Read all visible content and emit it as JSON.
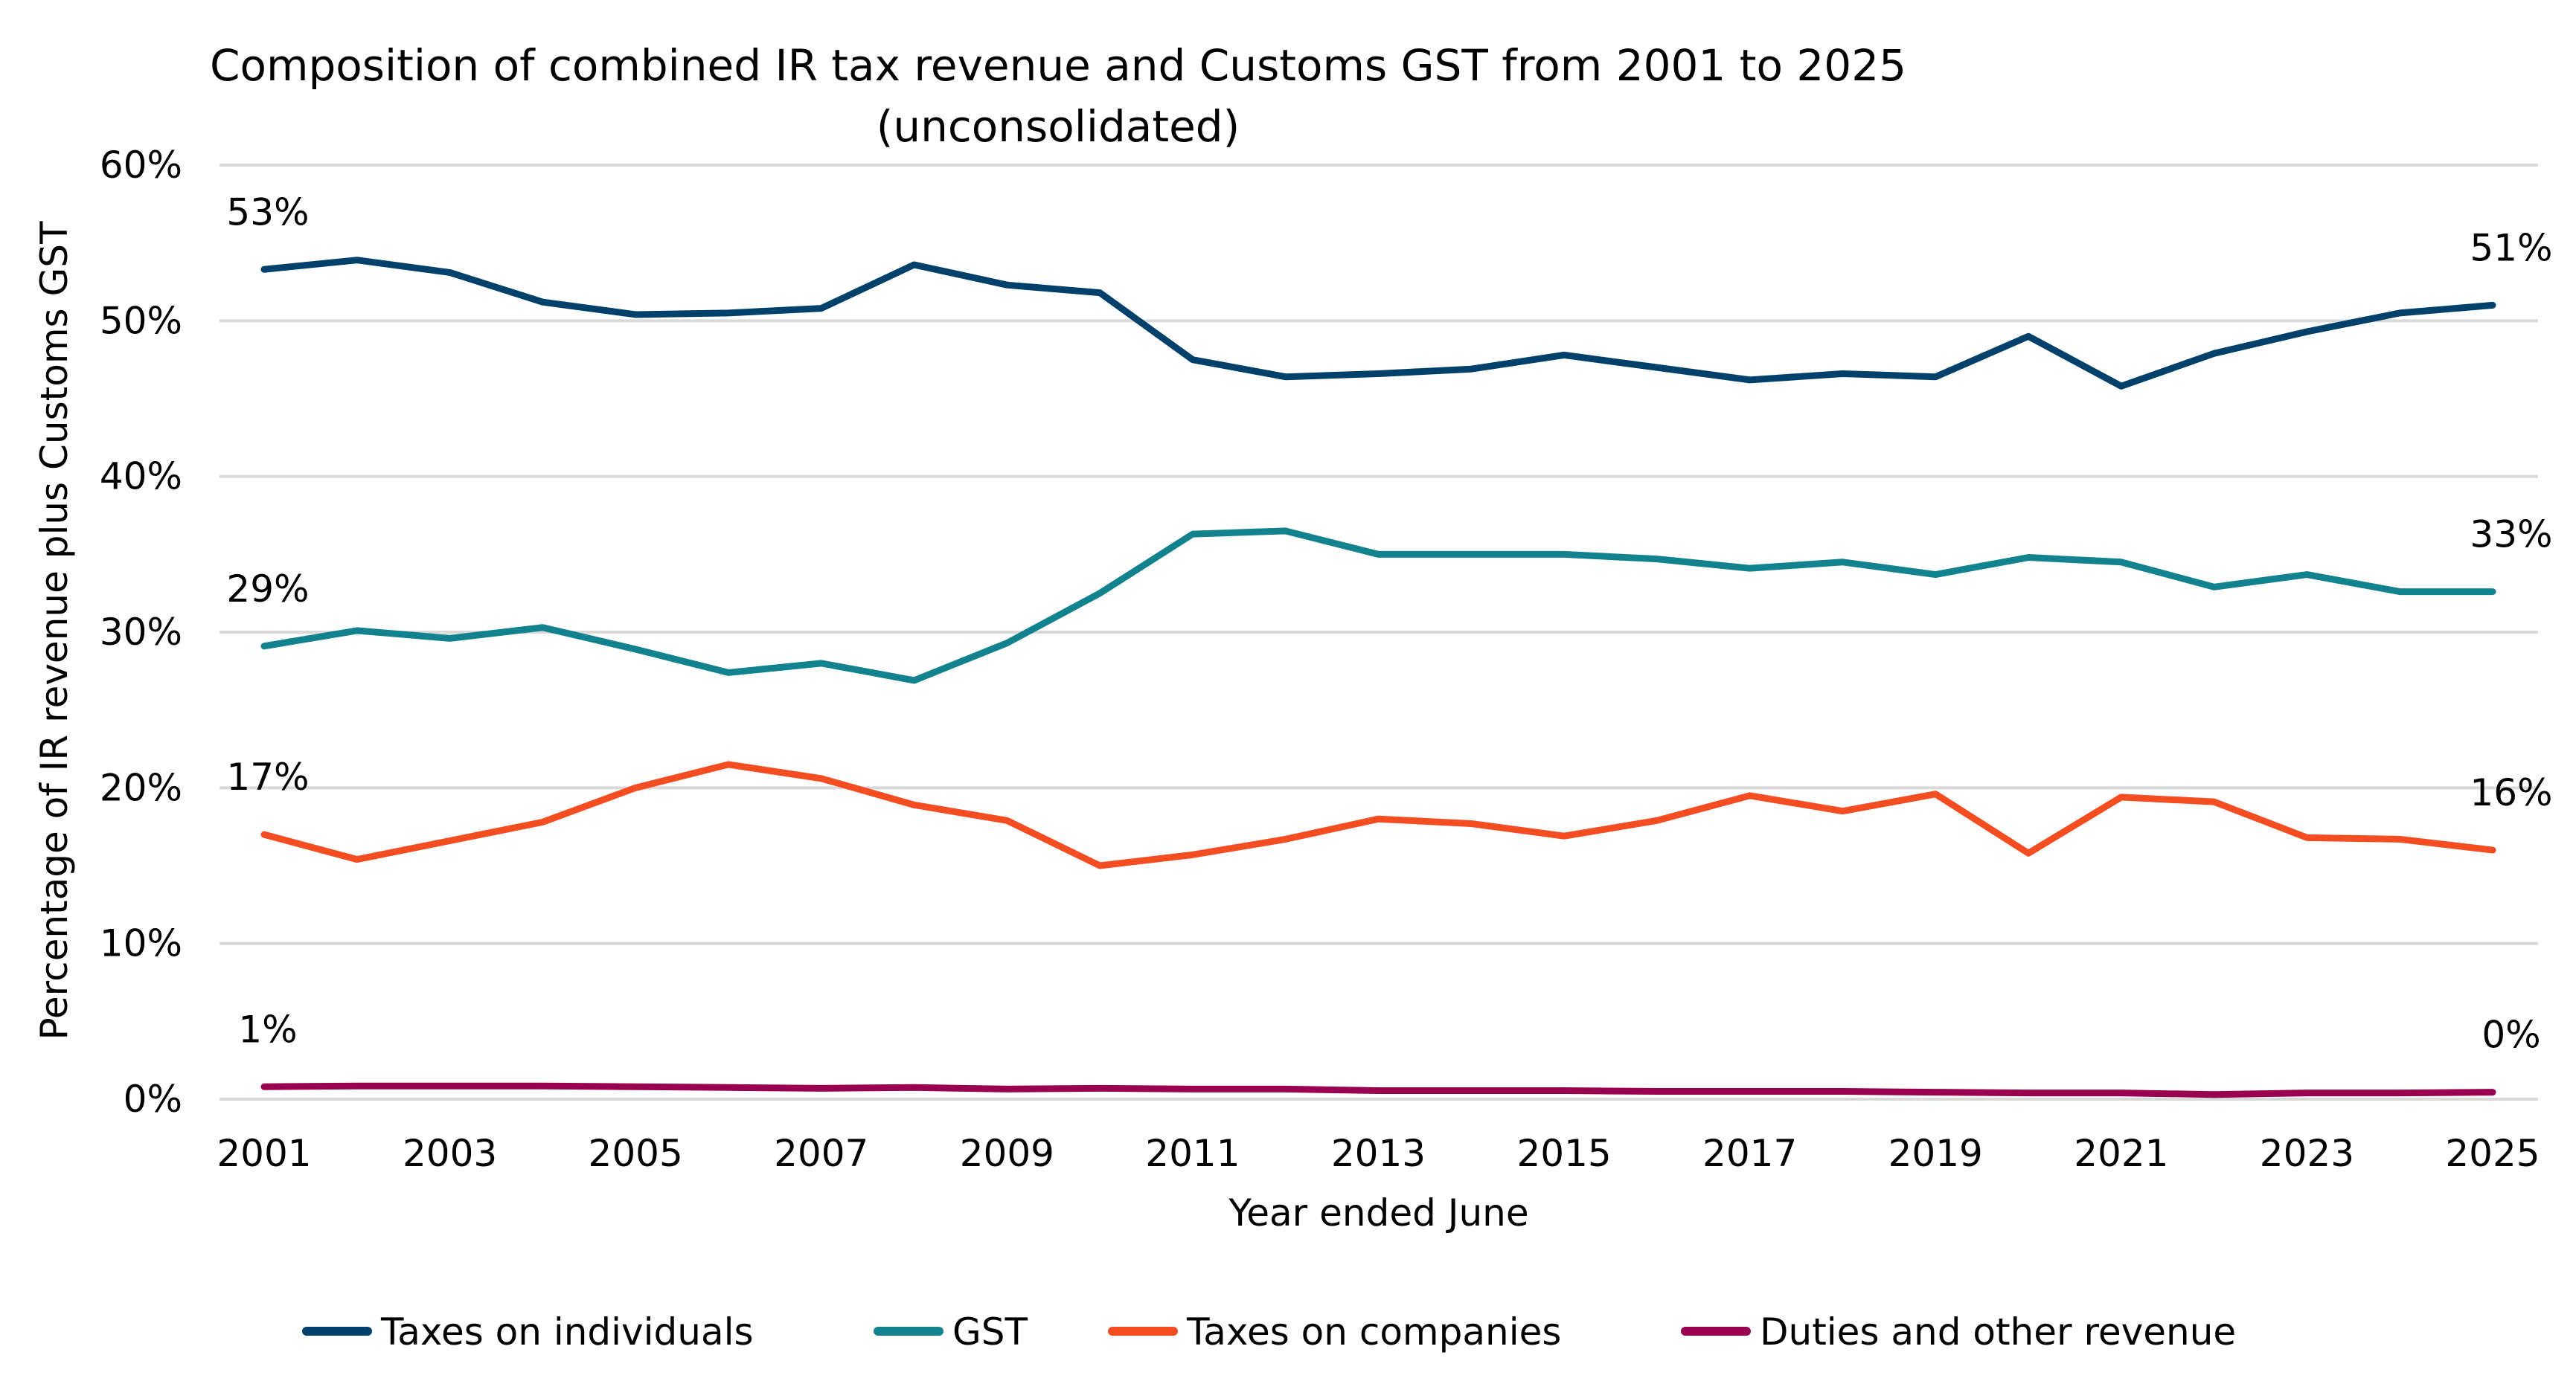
{
  "chart_data": {
    "type": "line",
    "title": "Composition of combined IR tax revenue and Customs GST from 2001 to 2025",
    "subtitle": "(unconsolidated)",
    "xlabel": "Year ended June",
    "ylabel": "Percentage of IR revenue plus Customs GST",
    "ylim": [
      0,
      60
    ],
    "yticks": [
      0,
      10,
      20,
      30,
      40,
      50,
      60
    ],
    "ytick_labels": [
      "0%",
      "10%",
      "20%",
      "30%",
      "40%",
      "50%",
      "60%"
    ],
    "x": [
      2001,
      2002,
      2003,
      2004,
      2005,
      2006,
      2007,
      2008,
      2009,
      2010,
      2011,
      2012,
      2013,
      2014,
      2015,
      2016,
      2017,
      2018,
      2019,
      2020,
      2021,
      2022,
      2023,
      2024,
      2025
    ],
    "xtick_labels": [
      "2001",
      "2003",
      "2005",
      "2007",
      "2009",
      "2011",
      "2013",
      "2015",
      "2017",
      "2019",
      "2021",
      "2023",
      "2025"
    ],
    "grid": true,
    "legend_position": "bottom",
    "series": [
      {
        "name": "Taxes on individuals",
        "color": "#00416B",
        "values": [
          53.3,
          53.9,
          53.1,
          51.2,
          50.4,
          50.5,
          50.8,
          53.6,
          52.3,
          51.8,
          47.5,
          46.4,
          46.6,
          46.9,
          47.8,
          47.0,
          46.2,
          46.6,
          46.4,
          49.0,
          45.8,
          47.9,
          49.3,
          50.5,
          51.0
        ],
        "start_label": "53%",
        "end_label": "51%"
      },
      {
        "name": "GST",
        "color": "#12838E",
        "values": [
          29.1,
          30.1,
          29.6,
          30.3,
          28.9,
          27.4,
          28.0,
          26.9,
          29.3,
          32.5,
          36.3,
          36.5,
          35.0,
          35.0,
          35.0,
          34.7,
          34.1,
          34.5,
          33.7,
          34.8,
          34.5,
          32.9,
          33.7,
          32.6,
          32.6
        ],
        "start_label": "29%",
        "end_label": "33%"
      },
      {
        "name": "Taxes on companies",
        "color": "#F54D22",
        "values": [
          17.0,
          15.4,
          16.6,
          17.8,
          20.0,
          21.5,
          20.6,
          18.9,
          17.9,
          15.0,
          15.7,
          16.7,
          18.0,
          17.7,
          16.9,
          17.9,
          19.5,
          18.5,
          19.6,
          15.8,
          19.4,
          19.1,
          16.8,
          16.7,
          16.0
        ],
        "start_label": "17%",
        "end_label": "16%"
      },
      {
        "name": "Duties and other revenue",
        "color": "#990050",
        "values": [
          0.8,
          0.85,
          0.85,
          0.85,
          0.8,
          0.75,
          0.7,
          0.75,
          0.65,
          0.7,
          0.65,
          0.65,
          0.55,
          0.55,
          0.55,
          0.5,
          0.5,
          0.5,
          0.45,
          0.4,
          0.4,
          0.3,
          0.4,
          0.4,
          0.45
        ],
        "start_label": "1%",
        "end_label": "0%"
      }
    ]
  }
}
